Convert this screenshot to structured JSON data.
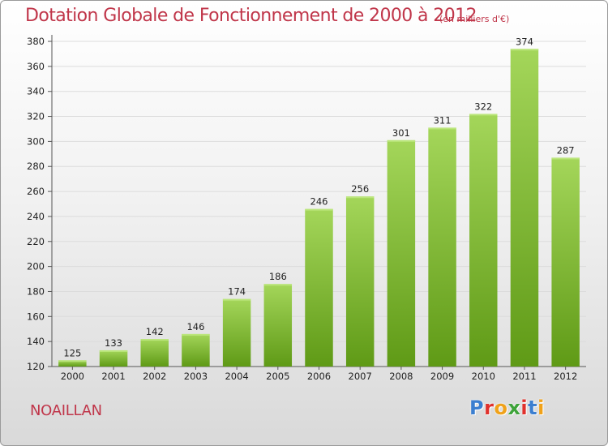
{
  "header": {
    "title": "Dotation Globale de Fonctionnement de 2000 à 2012",
    "subtitle": "(en milliers d'€)"
  },
  "footer": {
    "commune": "NOAILLAN",
    "logo": "Proxiti",
    "logo_colors": [
      "#3c7fd0",
      "#e0312c",
      "#f0a21a",
      "#3ea33a",
      "#e0312c",
      "#3c7fd0",
      "#f0a21a"
    ]
  },
  "colors": {
    "title": "#c0364a",
    "bar_light": "#a4d65a",
    "bar_dark": "#5f9a16",
    "grid": "#dcdcdc"
  },
  "chart_data": {
    "type": "bar",
    "categories": [
      "2000",
      "2001",
      "2002",
      "2003",
      "2004",
      "2005",
      "2006",
      "2007",
      "2008",
      "2009",
      "2010",
      "2011",
      "2012"
    ],
    "values": [
      125,
      133,
      142,
      146,
      174,
      186,
      246,
      256,
      301,
      311,
      322,
      374,
      287
    ],
    "ylim": [
      120,
      380
    ],
    "yticks": [
      120,
      140,
      160,
      180,
      200,
      220,
      240,
      260,
      280,
      300,
      320,
      340,
      360,
      380
    ],
    "grid": true,
    "data_labels": true
  }
}
